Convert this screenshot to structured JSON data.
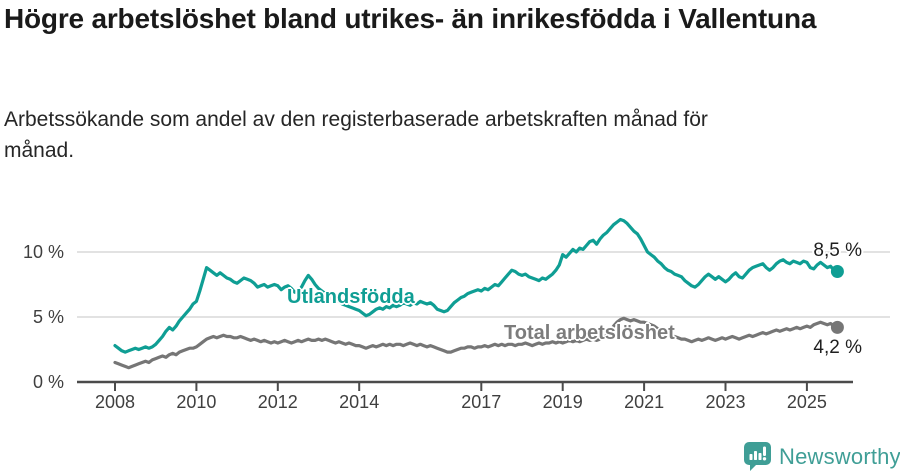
{
  "header": {
    "title": "Högre arbetslöshet bland utrikes- än inrikesfödda i Vallentuna",
    "subtitle": "Arbetssökande som andel av den registerbaserade arbetskraften månad för månad."
  },
  "footer": {
    "brand": "Newsworthy"
  },
  "colors": {
    "series_foreign": "#0f9e94",
    "series_total": "#767676",
    "gridline": "#d8d8d8",
    "axis": "#4b4b4b",
    "title_text": "#1a1a1a",
    "brand_teal": "#3f9e96"
  },
  "chart_data": {
    "type": "line",
    "title": "Högre arbetslöshet bland utrikes- än inrikesfödda i Vallentuna",
    "subtitle": "Arbetssökande som andel av den registerbaserade arbetskraften månad för månad.",
    "unit": "%",
    "x_start_year": 2008,
    "x_step_months": 1,
    "x_end_label_period": "2025 (månad 10)",
    "ylim": [
      0,
      13.5
    ],
    "grid": "horizontal",
    "legend_position": "inline-labels",
    "y_ticks": [
      {
        "value": 0,
        "label": "0 %"
      },
      {
        "value": 5,
        "label": "5 %"
      },
      {
        "value": 10,
        "label": "10 %"
      }
    ],
    "x_ticks": [
      {
        "year": 2008,
        "label": "2008"
      },
      {
        "year": 2010,
        "label": "2010"
      },
      {
        "year": 2012,
        "label": "2012"
      },
      {
        "year": 2014,
        "label": "2014"
      },
      {
        "year": 2017,
        "label": "2017"
      },
      {
        "year": 2019,
        "label": "2019"
      },
      {
        "year": 2021,
        "label": "2021"
      },
      {
        "year": 2023,
        "label": "2023"
      },
      {
        "year": 2025,
        "label": "2025"
      }
    ],
    "series": [
      {
        "name": "Utlandsfödda",
        "color": "#0f9e94",
        "end_value": 8.5,
        "end_label": "8,5 %",
        "values": [
          2.8,
          2.6,
          2.4,
          2.3,
          2.4,
          2.5,
          2.6,
          2.5,
          2.6,
          2.7,
          2.6,
          2.7,
          2.9,
          3.2,
          3.5,
          3.9,
          4.2,
          4.0,
          4.3,
          4.7,
          5.0,
          5.3,
          5.6,
          6.0,
          6.2,
          7.0,
          7.9,
          8.8,
          8.6,
          8.4,
          8.2,
          8.4,
          8.2,
          8.0,
          7.9,
          7.7,
          7.6,
          7.8,
          8.0,
          7.9,
          7.8,
          7.6,
          7.3,
          7.4,
          7.5,
          7.3,
          7.4,
          7.5,
          7.4,
          7.1,
          7.3,
          7.4,
          7.2,
          6.9,
          7.0,
          7.3,
          7.8,
          8.2,
          7.9,
          7.5,
          7.2,
          7.0,
          6.8,
          6.6,
          6.4,
          6.3,
          6.2,
          6.0,
          5.9,
          5.8,
          5.7,
          5.6,
          5.5,
          5.3,
          5.1,
          5.2,
          5.4,
          5.6,
          5.7,
          5.6,
          5.8,
          5.7,
          5.9,
          5.8,
          5.9,
          6.1,
          6.0,
          5.9,
          6.1,
          6.0,
          6.2,
          6.1,
          6.0,
          6.1,
          5.9,
          5.6,
          5.5,
          5.4,
          5.5,
          5.8,
          6.1,
          6.3,
          6.5,
          6.6,
          6.8,
          6.9,
          7.0,
          7.1,
          7.0,
          7.2,
          7.1,
          7.3,
          7.5,
          7.4,
          7.7,
          8.0,
          8.3,
          8.6,
          8.5,
          8.3,
          8.2,
          8.3,
          8.1,
          8.0,
          7.9,
          7.8,
          8.0,
          7.9,
          8.1,
          8.3,
          8.6,
          9.0,
          9.8,
          9.6,
          9.9,
          10.2,
          10.0,
          10.3,
          10.2,
          10.5,
          10.8,
          10.9,
          10.6,
          11.0,
          11.3,
          11.5,
          11.8,
          12.1,
          12.3,
          12.5,
          12.4,
          12.2,
          11.9,
          11.6,
          11.4,
          11.0,
          10.5,
          10.0,
          9.8,
          9.6,
          9.3,
          9.1,
          8.8,
          8.6,
          8.5,
          8.3,
          8.2,
          8.1,
          7.8,
          7.6,
          7.4,
          7.3,
          7.5,
          7.8,
          8.1,
          8.3,
          8.1,
          7.9,
          8.1,
          7.9,
          7.7,
          7.9,
          8.2,
          8.4,
          8.1,
          8.0,
          8.3,
          8.6,
          8.8,
          8.9,
          9.0,
          9.1,
          8.8,
          8.6,
          8.8,
          9.1,
          9.3,
          9.4,
          9.2,
          9.1,
          9.3,
          9.2,
          9.1,
          9.3,
          9.2,
          8.8,
          8.7,
          9.0,
          9.2,
          9.0,
          8.8,
          8.9,
          8.6,
          8.5
        ]
      },
      {
        "name": "Total arbetslöshet",
        "color": "#767676",
        "end_value": 4.2,
        "end_label": "4,2 %",
        "values": [
          1.5,
          1.4,
          1.3,
          1.2,
          1.1,
          1.2,
          1.3,
          1.4,
          1.5,
          1.6,
          1.5,
          1.7,
          1.8,
          1.9,
          2.0,
          1.9,
          2.1,
          2.2,
          2.1,
          2.3,
          2.4,
          2.5,
          2.6,
          2.6,
          2.7,
          2.9,
          3.1,
          3.3,
          3.4,
          3.5,
          3.4,
          3.5,
          3.6,
          3.5,
          3.5,
          3.4,
          3.4,
          3.5,
          3.4,
          3.3,
          3.2,
          3.3,
          3.2,
          3.1,
          3.2,
          3.1,
          3.0,
          3.1,
          3.0,
          3.1,
          3.2,
          3.1,
          3.0,
          3.1,
          3.2,
          3.1,
          3.2,
          3.3,
          3.2,
          3.2,
          3.3,
          3.2,
          3.3,
          3.2,
          3.1,
          3.0,
          3.1,
          3.0,
          2.9,
          3.0,
          2.9,
          2.8,
          2.8,
          2.7,
          2.6,
          2.7,
          2.8,
          2.7,
          2.8,
          2.9,
          2.8,
          2.9,
          2.8,
          2.9,
          2.9,
          2.8,
          2.9,
          3.0,
          2.9,
          2.8,
          2.9,
          2.8,
          2.7,
          2.8,
          2.7,
          2.6,
          2.5,
          2.4,
          2.3,
          2.3,
          2.4,
          2.5,
          2.6,
          2.6,
          2.7,
          2.7,
          2.6,
          2.7,
          2.7,
          2.8,
          2.7,
          2.8,
          2.9,
          2.8,
          2.9,
          2.8,
          2.9,
          2.9,
          2.8,
          2.9,
          2.9,
          3.0,
          2.9,
          2.8,
          2.9,
          3.0,
          2.9,
          3.0,
          3.0,
          3.1,
          3.0,
          3.1,
          3.0,
          3.1,
          3.2,
          3.1,
          3.2,
          3.1,
          3.2,
          3.3,
          3.2,
          3.3,
          3.2,
          3.3,
          3.4,
          3.6,
          3.9,
          4.3,
          4.6,
          4.8,
          4.9,
          4.8,
          4.7,
          4.8,
          4.7,
          4.6,
          4.6,
          4.5,
          4.4,
          4.3,
          4.1,
          4.0,
          3.8,
          3.7,
          3.6,
          3.5,
          3.4,
          3.3,
          3.3,
          3.2,
          3.1,
          3.2,
          3.3,
          3.2,
          3.3,
          3.4,
          3.3,
          3.2,
          3.3,
          3.4,
          3.3,
          3.4,
          3.5,
          3.4,
          3.3,
          3.4,
          3.5,
          3.6,
          3.5,
          3.6,
          3.7,
          3.8,
          3.7,
          3.8,
          3.9,
          4.0,
          3.9,
          4.0,
          4.1,
          4.0,
          4.1,
          4.2,
          4.1,
          4.2,
          4.3,
          4.2,
          4.4,
          4.5,
          4.6,
          4.5,
          4.4,
          4.5,
          4.3,
          4.2
        ]
      }
    ]
  }
}
